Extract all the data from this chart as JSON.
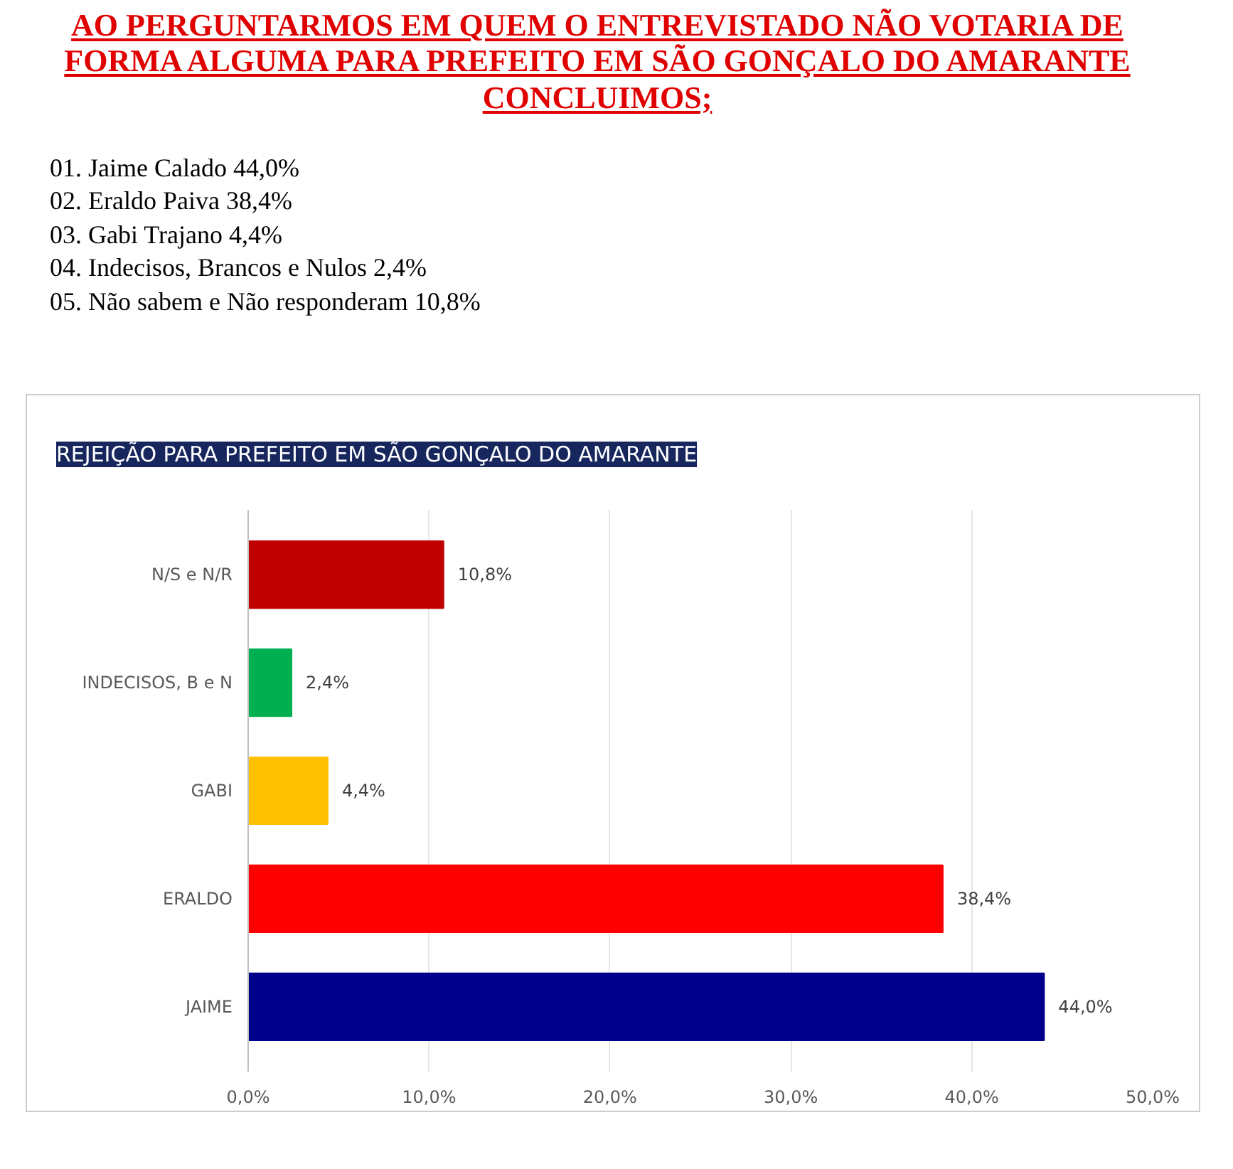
{
  "chart_data": {
    "type": "bar",
    "orientation": "horizontal",
    "title": "AO PERGUNTARMOS EM QUEM O ENTREVISTADO NÃO VOTARIA DE FORMA ALGUMA PARA PREFEITO EM SÃO GONÇALO DO AMARANTE CONCLUIMOS;",
    "subtitle": "REJEIÇÃO PARA PREFEITO EM SÃO GONÇALO DO AMARANTE",
    "annotations": [
      "01. Jaime Calado 44,0%",
      "02. Eraldo Paiva 38,4%",
      "03. Gabi Trajano 4,4%",
      "04. Indecisos, Brancos e Nulos 2,4%",
      "05. Não sabem e Não responderam 10,8%"
    ],
    "categories": [
      "N/S e N/R",
      "INDECISOS, B e N",
      "GABI",
      "ERALDO",
      "JAIME"
    ],
    "values": [
      10.8,
      2.4,
      4.4,
      38.4,
      44.0
    ],
    "colors": [
      "#c00000",
      "#00b050",
      "#ffc000",
      "#ff0000",
      "#00008b"
    ],
    "value_labels": [
      "10,8%",
      "2,4%",
      "4,4%",
      "38,4%",
      "44,0%"
    ],
    "xlim": [
      0,
      50
    ],
    "xticks": [
      {
        "value": 0,
        "label": "0,0%"
      },
      {
        "value": 10,
        "label": "10,0%"
      },
      {
        "value": 20,
        "label": "20,0%"
      },
      {
        "value": 30,
        "label": "30,0%"
      },
      {
        "value": 40,
        "label": "40,0%"
      },
      {
        "value": 50,
        "label": "50,0%"
      }
    ],
    "grid": "x"
  }
}
